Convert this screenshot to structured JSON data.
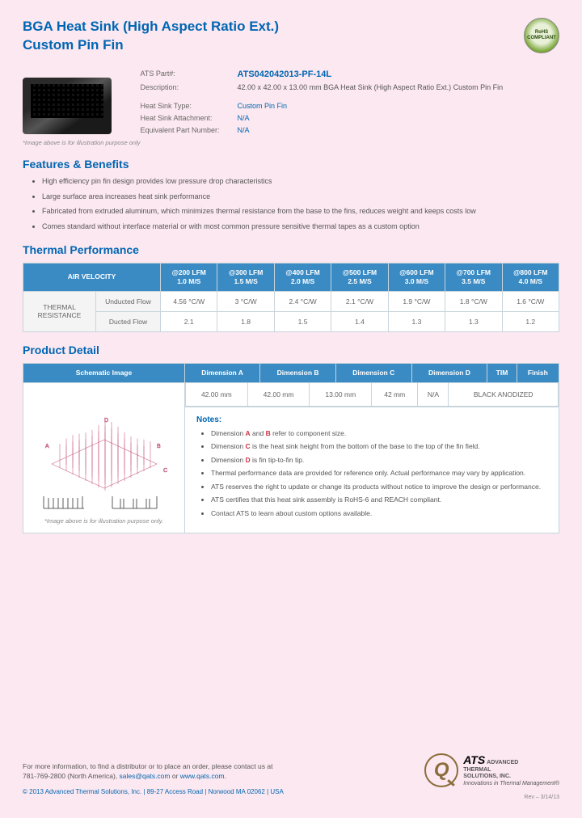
{
  "header": {
    "title_line1": "BGA Heat Sink (High Aspect Ratio Ext.)",
    "title_line2": "Custom Pin Fin",
    "rohs": "RoHS COMPLIANT"
  },
  "info": {
    "part_label": "ATS Part#:",
    "part_value": "ATS042042013-PF-14L",
    "desc_label": "Description:",
    "desc_value": "42.00 x 42.00 x 13.00 mm  BGA Heat Sink (High Aspect Ratio Ext.) Custom Pin Fin",
    "type_label": "Heat Sink Type:",
    "type_value": "Custom Pin Fin",
    "attach_label": "Heat Sink Attachment:",
    "attach_value": "N/A",
    "equiv_label": "Equivalent Part Number:",
    "equiv_value": "N/A",
    "img_note": "*Image above is for illustration purpose only"
  },
  "features": {
    "title": "Features & Benefits",
    "items": [
      "High efficiency pin fin design provides low pressure drop characteristics",
      "Large surface area increases heat sink performance",
      "Fabricated from extruded aluminum, which minimizes thermal resistance from the base to the fins, reduces weight and keeps costs low",
      "Comes standard without interface material or with most common pressure sensitive thermal tapes as a custom option"
    ]
  },
  "thermal": {
    "title": "Thermal Performance",
    "air_velocity": "AIR VELOCITY",
    "headers": [
      {
        "t": "@200 LFM",
        "b": "1.0 M/S"
      },
      {
        "t": "@300 LFM",
        "b": "1.5 M/S"
      },
      {
        "t": "@400 LFM",
        "b": "2.0 M/S"
      },
      {
        "t": "@500 LFM",
        "b": "2.5 M/S"
      },
      {
        "t": "@600 LFM",
        "b": "3.0 M/S"
      },
      {
        "t": "@700 LFM",
        "b": "3.5 M/S"
      },
      {
        "t": "@800 LFM",
        "b": "4.0 M/S"
      }
    ],
    "row_group": "THERMAL RESISTANCE",
    "unducted_label": "Unducted Flow",
    "unducted": [
      "4.56 °C/W",
      "3 °C/W",
      "2.4 °C/W",
      "2.1 °C/W",
      "1.9 °C/W",
      "1.8 °C/W",
      "1.6 °C/W"
    ],
    "ducted_label": "Ducted Flow",
    "ducted": [
      "2.1",
      "1.8",
      "1.5",
      "1.4",
      "1.3",
      "1.3",
      "1.2"
    ]
  },
  "detail": {
    "title": "Product Detail",
    "schematic_header": "Schematic Image",
    "headers": [
      "Dimension A",
      "Dimension B",
      "Dimension C",
      "Dimension D",
      "TIM",
      "Finish"
    ],
    "values": [
      "42.00 mm",
      "42.00 mm",
      "13.00 mm",
      "42 mm",
      "N/A",
      "BLACK ANODIZED"
    ],
    "img_note": "*Image above is for illustration purpose only.",
    "notes_title": "Notes:",
    "notes": [
      "Dimension <span class='red'>A</span> and <span class='red'>B</span> refer to component size.",
      "Dimension <span class='red'>C</span> is the heat sink height from the bottom of the base to the top of the fin field.",
      "Dimension <span class='red'>D</span> is fin tip-to-fin tip.",
      "Thermal performance data are provided for reference only. Actual performance may vary by application.",
      "ATS reserves the right to update or change its products without notice to improve the design or performance.",
      "ATS certifies that this heat sink assembly is RoHS-6 and REACH compliant.",
      "Contact ATS to learn about custom options available."
    ]
  },
  "footer": {
    "contact": "For more information, to find a distributor or to place an order, please contact us at",
    "phone": "781-769-2800 (North America), ",
    "email": "sales@qats.com",
    "or": " or ",
    "site": "www.qats.com",
    "copyright": "© 2013 Advanced Thermal Solutions, Inc. | 89-27 Access Road | Norwood MA   02062 | USA",
    "logo_sub1": "ADVANCED",
    "logo_sub2": "THERMAL",
    "logo_sub3": "SOLUTIONS, INC.",
    "logo_tag": "Innovations in Thermal Management®",
    "rev": "Rev – 3/14/13"
  }
}
